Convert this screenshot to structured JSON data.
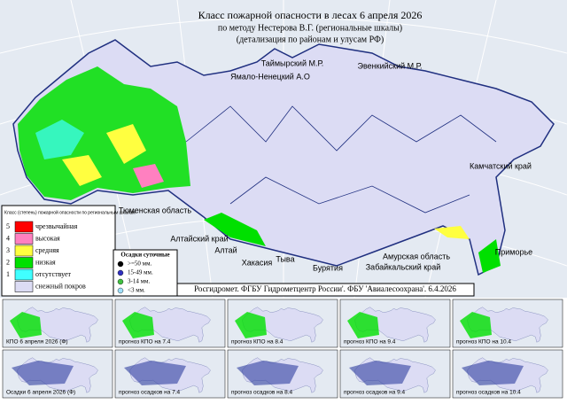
{
  "header": {
    "title": "Класс пожарной опасности в лесах 6  апреля 2026",
    "subtitle": "по методу Нестерова В.Г. (региональные шкалы)",
    "detail": "(детализация по районам и улусам РФ)"
  },
  "regions": [
    "Таймырский М.Р.",
    "Ямало-Ненецкий А.О",
    "Эвенкийский М.Р.",
    "Камчатский край",
    "Тюменская область",
    "Алтайский край",
    "Алтай",
    "Хакасия",
    "Тыва",
    "Бурятия",
    "Амурская область",
    "Забайкальский край",
    "Приморье"
  ],
  "legend": {
    "title": "Класс (степень) пожарной опасности по региональным шкалам",
    "rows": [
      {
        "class": 5,
        "label": "чрезвычайная",
        "color": "#ff0000"
      },
      {
        "class": 4,
        "label": "высокая",
        "color": "#ff80c0"
      },
      {
        "class": 3,
        "label": "средняя",
        "color": "#ffff40"
      },
      {
        "class": 2,
        "label": "низкая",
        "color": "#00e000"
      },
      {
        "class": 1,
        "label": "отсутствует",
        "color": "#40ffff"
      },
      {
        "label": "снежный покров",
        "color": "#dcdcf4"
      }
    ]
  },
  "precipitation": {
    "title": "Осадки суточные",
    "rows": [
      {
        "label": ">=50 мм.",
        "color": "#000000"
      },
      {
        "label": "15-49 мм.",
        "color": "#3030c0"
      },
      {
        "label": "3-14 мм.",
        "color": "#40c040"
      },
      {
        "label": "<3 мм.",
        "color": "#a0e0ff"
      }
    ]
  },
  "footer": "Росгидромет. ФГБУ Гидрометцентр России'. ФБУ 'Авиалесоохрана'. 6.4.2026",
  "thumbnails": {
    "fire": [
      "КПО 6  апреля 2026 (Ф)",
      "прогноз КПО на 7.4",
      "прогноз КПО на 8.4",
      "прогноз КПО на 9.4",
      "прогноз КПО на 10.4"
    ],
    "precip": [
      "Осадки 6  апреля 2026 (Ф)",
      "прогноз осадков на 7.4",
      "прогноз осадков на 8.4",
      "прогноз осадков на 9.4",
      "прогноз осадков на 10.4"
    ]
  }
}
